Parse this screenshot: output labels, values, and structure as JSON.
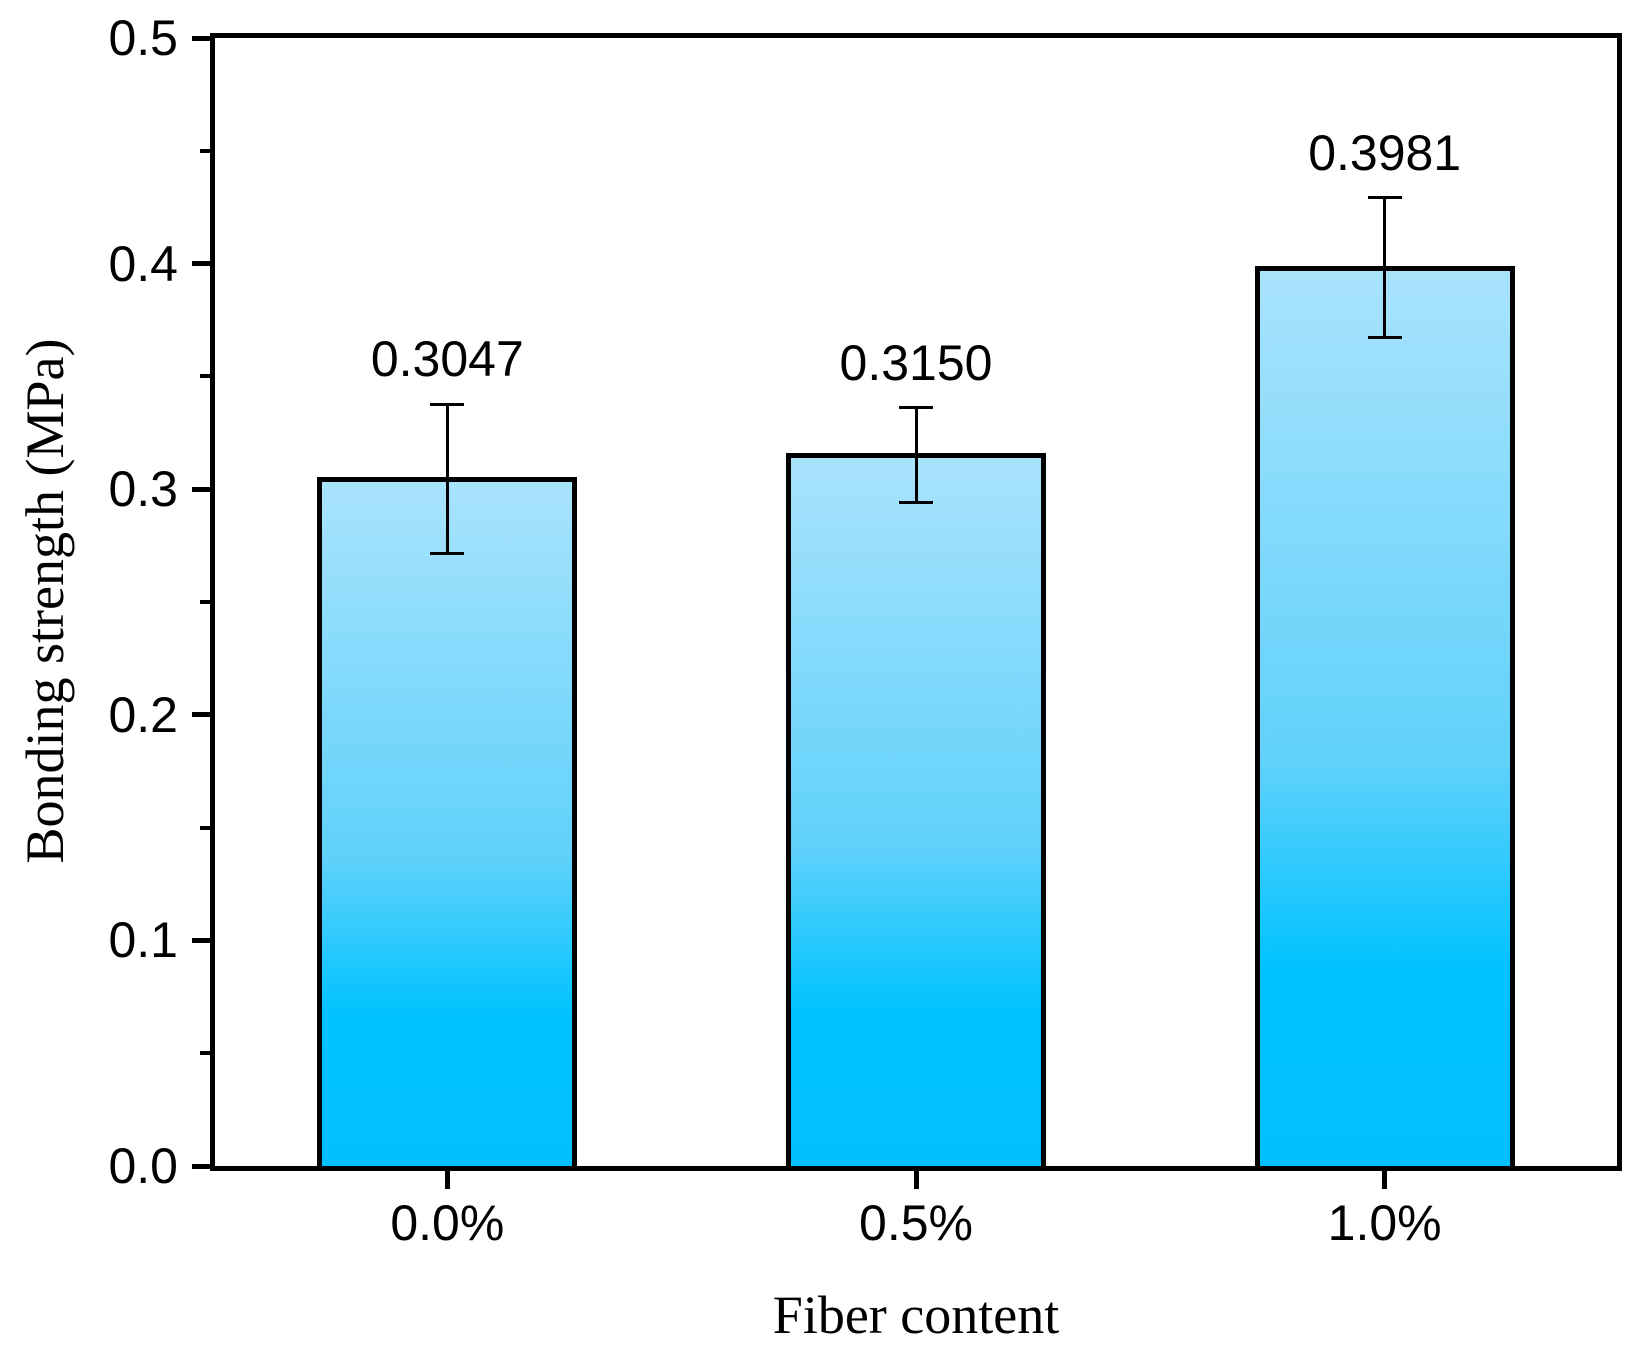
{
  "chart_data": {
    "type": "bar",
    "title": "",
    "xlabel": "Fiber content",
    "ylabel": "Bonding strength (MPa)",
    "categories": [
      "0.0%",
      "0.5%",
      "1.0%"
    ],
    "values": [
      0.3047,
      0.315,
      0.3981
    ],
    "value_labels": [
      "0.3047",
      "0.3150",
      "0.3981"
    ],
    "errors": [
      0.033,
      0.021,
      0.031
    ],
    "ylim": [
      0,
      0.5
    ],
    "yticks": [
      {
        "v": 0.0,
        "label": "0.0"
      },
      {
        "v": 0.1,
        "label": "0.1"
      },
      {
        "v": 0.2,
        "label": "0.2"
      },
      {
        "v": 0.3,
        "label": "0.3"
      },
      {
        "v": 0.4,
        "label": "0.4"
      },
      {
        "v": 0.5,
        "label": "0.5"
      }
    ],
    "minor_ytick_step": 0.05,
    "grid": false,
    "legend": null,
    "bar_fill_stops": [
      [
        0.0,
        "#A9E3FC"
      ],
      [
        0.55,
        "#5FD1FB"
      ],
      [
        0.78,
        "#00C2FF"
      ],
      [
        1.0,
        "#00BFFF"
      ]
    ],
    "bar_border_color": "#000000",
    "axis_color": "#000000",
    "text_color": "#000000",
    "background": "#FFFFFF"
  }
}
